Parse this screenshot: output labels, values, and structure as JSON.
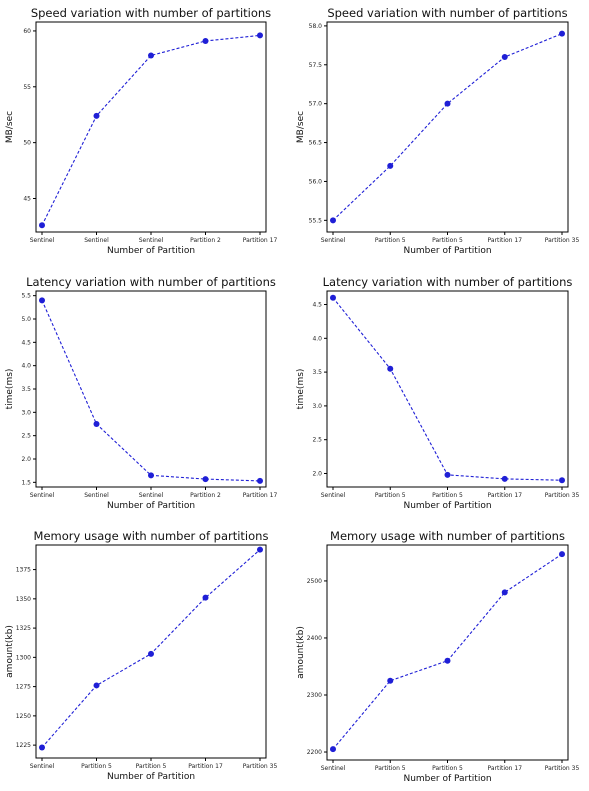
{
  "colors": {
    "series": "#1f1fd6",
    "axis": "#000000",
    "background": "#ffffff"
  },
  "chart_data": [
    {
      "type": "line",
      "title": "Speed variation with number of partitions",
      "xlabel": "Number of Partition",
      "ylabel": "MB/sec",
      "categories": [
        "Sentinel",
        "Sentinel",
        "Sentinel",
        "Partition 2",
        "Partition 17"
      ],
      "values": [
        42.6,
        52.4,
        57.8,
        59.1,
        59.6
      ],
      "yticks": [
        45,
        50,
        55,
        60
      ],
      "yticklabels": [
        "45",
        "50",
        "55",
        "60"
      ],
      "ylim": [
        42.0,
        60.8
      ],
      "grid": false,
      "legend": "none"
    },
    {
      "type": "line",
      "title": "Speed variation with number of partitions",
      "xlabel": "Number of Partition",
      "ylabel": "MB/sec",
      "categories": [
        "Sentinel",
        "Partition 5",
        "Partition 5",
        "Partition 17",
        "Partition 35"
      ],
      "values": [
        55.5,
        56.2,
        57.0,
        57.6,
        57.9
      ],
      "yticks": [
        55.5,
        56.0,
        56.5,
        57.0,
        57.5,
        58.0
      ],
      "yticklabels": [
        "55.5",
        "56.0",
        "56.5",
        "57.0",
        "57.5",
        "58.0"
      ],
      "ylim": [
        55.35,
        58.05
      ],
      "grid": false,
      "legend": "none"
    },
    {
      "type": "line",
      "title": "Latency variation with number of partitions",
      "xlabel": "Number of Partition",
      "ylabel": "time(ms)",
      "categories": [
        "Sentinel",
        "Sentinel",
        "Sentinel",
        "Partition 2",
        "Partition 17"
      ],
      "values": [
        5.4,
        2.75,
        1.65,
        1.57,
        1.53
      ],
      "yticks": [
        1.5,
        2.0,
        2.5,
        3.0,
        3.5,
        4.0,
        4.5,
        5.0,
        5.5
      ],
      "yticklabels": [
        "1.5",
        "2.0",
        "2.5",
        "3.0",
        "3.5",
        "4.0",
        "4.5",
        "5.0",
        "5.5"
      ],
      "ylim": [
        1.4,
        5.6
      ],
      "grid": false,
      "legend": "none"
    },
    {
      "type": "line",
      "title": "Latency variation with number of partitions",
      "xlabel": "Number of Partition",
      "ylabel": "time(ms)",
      "categories": [
        "Sentinel",
        "Partition 5",
        "Partition 5",
        "Partition 17",
        "Partition 35"
      ],
      "values": [
        4.6,
        3.55,
        1.98,
        1.92,
        1.9
      ],
      "yticks": [
        2.0,
        2.5,
        3.0,
        3.5,
        4.0,
        4.5
      ],
      "yticklabels": [
        "2.0",
        "2.5",
        "3.0",
        "3.5",
        "4.0",
        "4.5"
      ],
      "ylim": [
        1.8,
        4.7
      ],
      "grid": false,
      "legend": "none"
    },
    {
      "type": "line",
      "title": "Memory usage with number of partitions",
      "xlabel": "Number of Partition",
      "ylabel": "amount(kb)",
      "categories": [
        "Sentinel",
        "Partition 5",
        "Partition 5",
        "Partition 17",
        "Partition 35"
      ],
      "values": [
        1223,
        1276,
        1303,
        1351,
        1392
      ],
      "yticks": [
        1225,
        1250,
        1275,
        1300,
        1325,
        1350,
        1375
      ],
      "yticklabels": [
        "1225",
        "1250",
        "1275",
        "1300",
        "1325",
        "1350",
        "1375"
      ],
      "ylim": [
        1214,
        1396
      ],
      "grid": false,
      "legend": "none"
    },
    {
      "type": "line",
      "title": "Memory usage with number of partitions",
      "xlabel": "Number of Partition",
      "ylabel": "amount(kb)",
      "categories": [
        "Sentinel",
        "Partition 5",
        "Partition 5",
        "Partition 17",
        "Partition 35"
      ],
      "values": [
        2205,
        2325,
        2360,
        2480,
        2547
      ],
      "yticks": [
        2200,
        2300,
        2400,
        2500
      ],
      "yticklabels": [
        "2200",
        "2300",
        "2400",
        "2500"
      ],
      "ylim": [
        2186,
        2563
      ],
      "grid": false,
      "legend": "none"
    }
  ]
}
